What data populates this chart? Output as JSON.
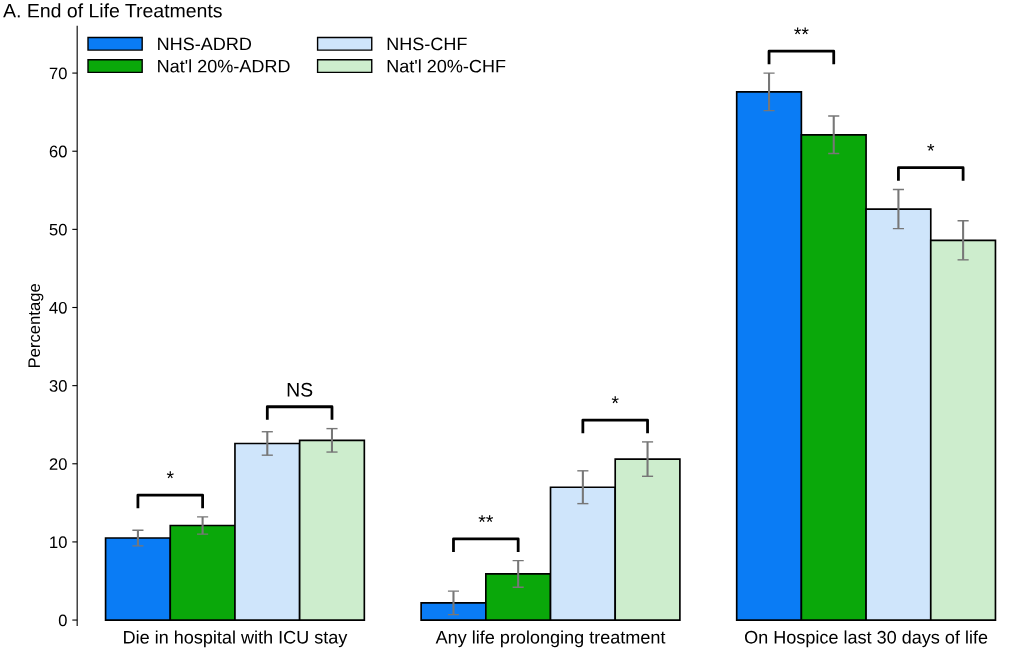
{
  "chart_data": {
    "type": "bar",
    "title": "A. End of Life Treatments",
    "ylabel": "Percentage",
    "categories": [
      "Die in hospital with ICU stay",
      "Any life prolonging treatment",
      "On Hospice last 30 days of life"
    ],
    "series": [
      {
        "name": "NHS-ADRD",
        "color": "#0a7cf5",
        "values": [
          10.5,
          2.2,
          67.6
        ],
        "errors": [
          1.0,
          1.5,
          2.4
        ]
      },
      {
        "name": "Nat'l 20%-ADRD",
        "color": "#0aa80a",
        "values": [
          12.1,
          5.9,
          62.1
        ],
        "errors": [
          1.1,
          1.7,
          2.4
        ]
      },
      {
        "name": "NHS-CHF",
        "color": "#cfe5fb",
        "values": [
          22.6,
          17.0,
          52.6
        ],
        "errors": [
          1.5,
          2.1,
          2.5
        ]
      },
      {
        "name": "Nat'l 20%-CHF",
        "color": "#cdedcd",
        "values": [
          23.0,
          20.6,
          48.6
        ],
        "errors": [
          1.5,
          2.2,
          2.5
        ]
      }
    ],
    "ylim": [
      -0.7,
      76
    ],
    "yticks": [
      0,
      10,
      20,
      30,
      40,
      50,
      60,
      70
    ],
    "grid": false,
    "legend": "top left",
    "annotations": [
      "*",
      "NS",
      "**",
      "*",
      "**",
      "*"
    ]
  }
}
